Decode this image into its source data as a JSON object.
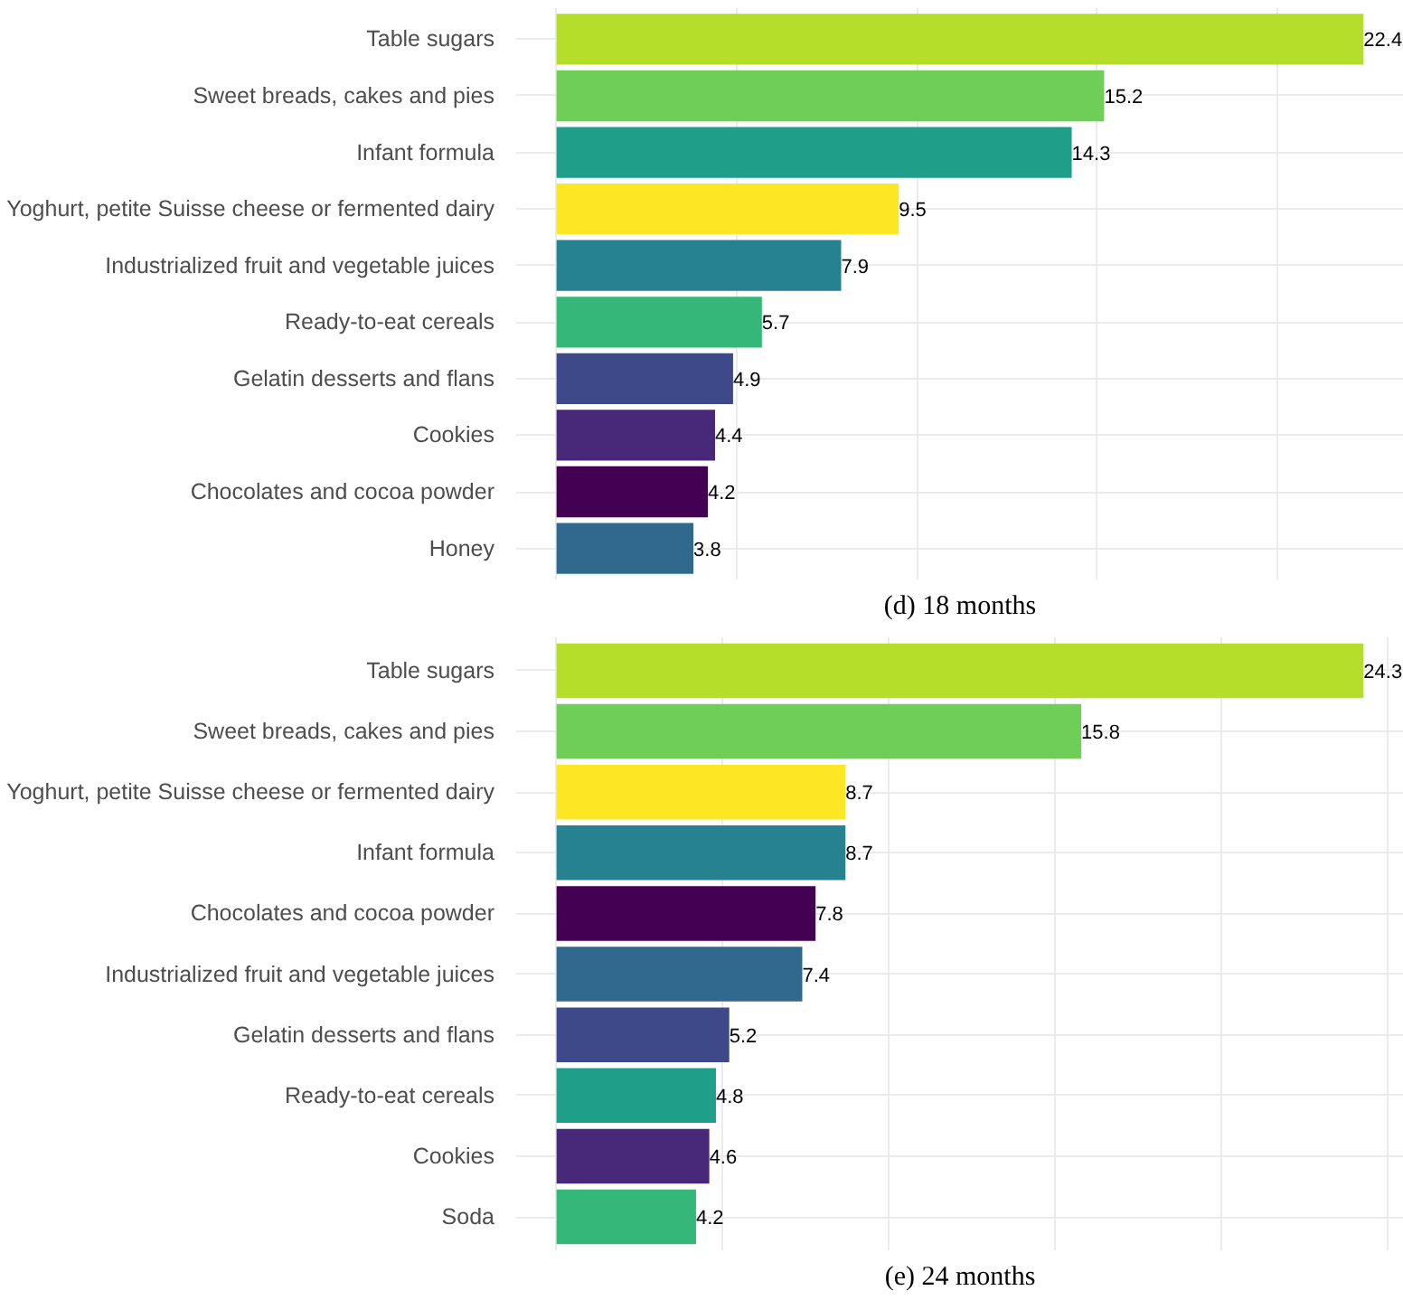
{
  "chart_data": [
    {
      "type": "bar",
      "orientation": "horizontal",
      "title": "(d) 18 months",
      "categories": [
        "Table sugars",
        "Sweet breads, cakes and pies",
        "Infant formula",
        "Yoghurt, petite Suisse cheese or fermented dairy",
        "Industrialized fruit and vegetable juices",
        "Ready-to-eat cereals",
        "Gelatin desserts and flans",
        "Cookies",
        "Chocolates and cocoa powder",
        "Honey"
      ],
      "values": [
        22.4,
        15.2,
        14.3,
        9.5,
        7.9,
        5.7,
        4.9,
        4.4,
        4.2,
        3.8
      ],
      "colors": [
        "#b5de2b",
        "#6ece58",
        "#1f9e89",
        "#fde725",
        "#26828e",
        "#35b779",
        "#3e4989",
        "#482878",
        "#440154",
        "#31688e"
      ],
      "xlim": [
        -1.12,
        23.52
      ],
      "xticks": [
        {
          "value": 0,
          "label": null
        },
        {
          "value": 5,
          "label": null
        },
        {
          "value": 10,
          "label": null
        },
        {
          "value": 15,
          "label": null
        },
        {
          "value": 20,
          "label": null
        }
      ],
      "tick_labels": "y",
      "grid": true,
      "data_labels": true
    },
    {
      "type": "bar",
      "orientation": "horizontal",
      "title": "(e) 24 months",
      "categories": [
        "Table sugars",
        "Sweet breads, cakes and pies",
        "Yoghurt, petite Suisse cheese or fermented dairy",
        "Infant formula",
        "Chocolates and cocoa powder",
        "Industrialized fruit and vegetable juices",
        "Gelatin desserts and flans",
        "Ready-to-eat cereals",
        "Cookies",
        "Soda"
      ],
      "values": [
        24.3,
        15.8,
        8.7,
        8.7,
        7.8,
        7.4,
        5.2,
        4.8,
        4.6,
        4.2
      ],
      "colors": [
        "#b5de2b",
        "#6ece58",
        "#fde725",
        "#26828e",
        "#440154",
        "#31688e",
        "#3e4989",
        "#1f9e89",
        "#482878",
        "#35b779"
      ],
      "xlim": [
        -1.215,
        25.515
      ],
      "xticks": [
        {
          "value": 0,
          "label": null
        },
        {
          "value": 5,
          "label": null
        },
        {
          "value": 10,
          "label": null
        },
        {
          "value": 15,
          "label": null
        },
        {
          "value": 20,
          "label": null
        },
        {
          "value": 25,
          "label": null
        }
      ],
      "tick_labels": "y",
      "grid": true,
      "data_labels": true
    }
  ]
}
